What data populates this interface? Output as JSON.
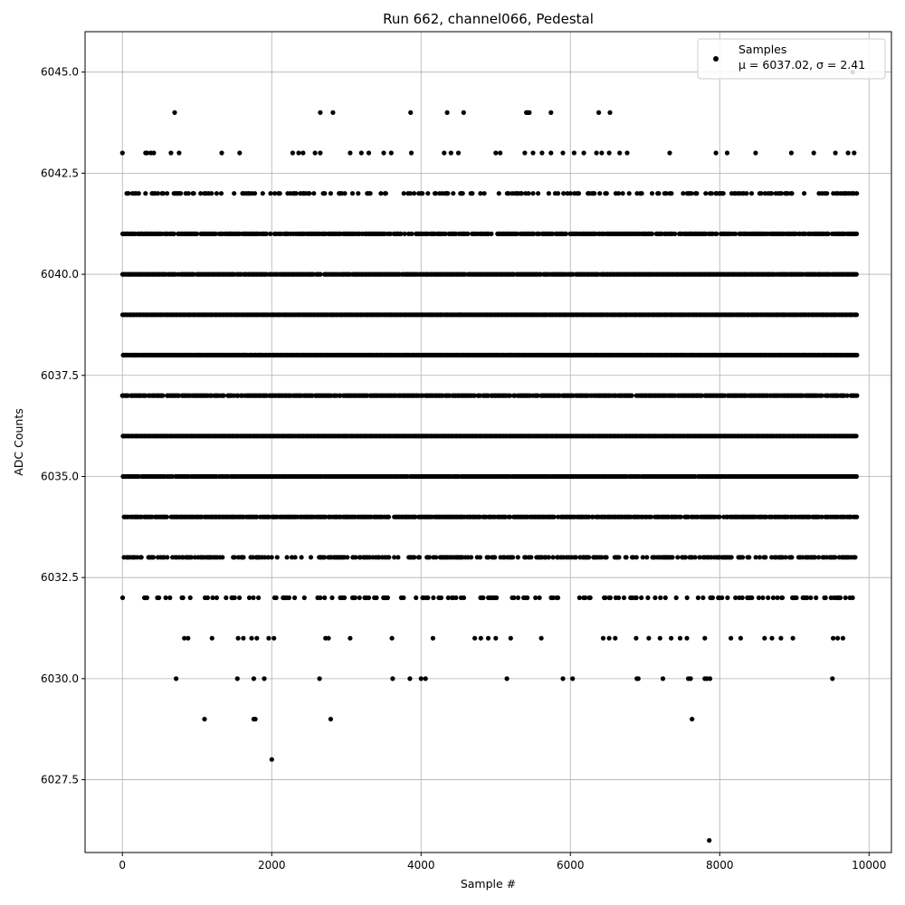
{
  "chart_data": {
    "type": "scatter",
    "title": "Run 662, channel066, Pedestal",
    "xlabel": "Sample #",
    "ylabel": "ADC Counts",
    "xlim": [
      -500,
      10300
    ],
    "ylim": [
      6025.7,
      6046.0
    ],
    "xticks": [
      0,
      2000,
      4000,
      6000,
      8000,
      10000
    ],
    "xtick_labels": [
      "0",
      "2000",
      "4000",
      "6000",
      "8000",
      "10000"
    ],
    "yticks": [
      6027.5,
      6030.0,
      6032.5,
      6035.0,
      6037.5,
      6040.0,
      6042.5,
      6045.0
    ],
    "ytick_labels": [
      "6027.5",
      "6030.0",
      "6032.5",
      "6035.0",
      "6037.5",
      "6040.0",
      "6042.5",
      "6045.0"
    ],
    "grid": true,
    "legend_position": "top-right",
    "series": [
      {
        "name": "Samples",
        "stats_label": "μ = 6037.02, σ = 2.41",
        "color": "#000000",
        "x_range": [
          0,
          9830
        ],
        "sample_count": 9831,
        "level_fill": {
          "6026": 0.0,
          "6028": 0.0,
          "6029": 0.0,
          "6030": 0.003,
          "6031": 0.05,
          "6032": 0.28,
          "6033": 0.55,
          "6034": 0.85,
          "6035": 0.97,
          "6036": 1.0,
          "6037": 0.9,
          "6038": 1.0,
          "6039": 1.0,
          "6040": 0.97,
          "6041": 0.8,
          "6042": 0.33,
          "6043": 0.12,
          "6044": 0.0,
          "6045": 0.0
        },
        "points": [
          [
            7860,
            6026
          ],
          [
            2000,
            6028
          ],
          [
            1100,
            6029
          ],
          [
            1760,
            6029
          ],
          [
            1780,
            6029
          ],
          [
            2790,
            6029
          ],
          [
            7630,
            6029
          ],
          [
            720,
            6030
          ],
          [
            1540,
            6030
          ],
          [
            1760,
            6030
          ],
          [
            1900,
            6030
          ],
          [
            2640,
            6030
          ],
          [
            3620,
            6030
          ],
          [
            3850,
            6030
          ],
          [
            4000,
            6030
          ],
          [
            4060,
            6030
          ],
          [
            5150,
            6030
          ],
          [
            5900,
            6030
          ],
          [
            6030,
            6030
          ],
          [
            6890,
            6030
          ],
          [
            6910,
            6030
          ],
          [
            7240,
            6030
          ],
          [
            7580,
            6030
          ],
          [
            7610,
            6030
          ],
          [
            7800,
            6030
          ],
          [
            7830,
            6030
          ],
          [
            7870,
            6030
          ],
          [
            9510,
            6030
          ],
          [
            700,
            6044
          ],
          [
            2650,
            6044
          ],
          [
            2820,
            6044
          ],
          [
            3860,
            6044
          ],
          [
            4350,
            6044
          ],
          [
            4570,
            6044
          ],
          [
            5410,
            6044
          ],
          [
            5430,
            6044
          ],
          [
            5450,
            6044
          ],
          [
            5740,
            6044
          ],
          [
            6380,
            6044
          ],
          [
            6530,
            6044
          ],
          [
            9780,
            6045
          ]
        ],
        "fill_samples": [
          [
            6043,
            0
          ],
          [
            6043,
            310
          ],
          [
            6043,
            330
          ],
          [
            6043,
            380
          ],
          [
            6043,
            420
          ],
          [
            6043,
            650
          ],
          [
            6043,
            760
          ],
          [
            6043,
            1330
          ],
          [
            6043,
            1570
          ],
          [
            6043,
            2280
          ],
          [
            6043,
            2360
          ],
          [
            6043,
            2420
          ],
          [
            6043,
            2580
          ],
          [
            6043,
            2650
          ],
          [
            6043,
            3050
          ],
          [
            6043,
            3200
          ],
          [
            6043,
            3300
          ],
          [
            6043,
            3500
          ],
          [
            6043,
            3600
          ],
          [
            6043,
            3870
          ],
          [
            6043,
            4310
          ],
          [
            6043,
            4400
          ],
          [
            6043,
            4500
          ],
          [
            6043,
            5000
          ],
          [
            6043,
            5060
          ],
          [
            6043,
            5390
          ],
          [
            6043,
            5500
          ],
          [
            6043,
            5620
          ],
          [
            6043,
            5740
          ],
          [
            6043,
            5900
          ],
          [
            6043,
            6050
          ],
          [
            6043,
            6180
          ],
          [
            6043,
            6350
          ],
          [
            6043,
            6420
          ],
          [
            6043,
            6520
          ],
          [
            6043,
            6660
          ],
          [
            6043,
            6760
          ],
          [
            6043,
            7330
          ],
          [
            6043,
            7950
          ],
          [
            6043,
            8100
          ],
          [
            6043,
            8480
          ],
          [
            6043,
            8960
          ],
          [
            6043,
            9260
          ],
          [
            6043,
            9550
          ],
          [
            6043,
            9720
          ],
          [
            6043,
            9800
          ],
          [
            6031,
            830
          ],
          [
            6031,
            880
          ],
          [
            6031,
            1200
          ],
          [
            6031,
            1550
          ],
          [
            6031,
            1620
          ],
          [
            6031,
            1730
          ],
          [
            6031,
            1800
          ],
          [
            6031,
            1960
          ],
          [
            6031,
            2030
          ],
          [
            6031,
            2720
          ],
          [
            6031,
            2760
          ],
          [
            6031,
            3050
          ],
          [
            6031,
            3610
          ],
          [
            6031,
            4160
          ],
          [
            6031,
            4720
          ],
          [
            6031,
            4800
          ],
          [
            6031,
            4900
          ],
          [
            6031,
            5000
          ],
          [
            6031,
            5200
          ],
          [
            6031,
            5610
          ],
          [
            6031,
            6440
          ],
          [
            6031,
            6520
          ],
          [
            6031,
            6600
          ],
          [
            6031,
            6880
          ],
          [
            6031,
            7050
          ],
          [
            6031,
            7200
          ],
          [
            6031,
            7350
          ],
          [
            6031,
            7470
          ],
          [
            6031,
            7560
          ],
          [
            6031,
            7800
          ],
          [
            6031,
            8150
          ],
          [
            6031,
            8280
          ],
          [
            6031,
            8600
          ],
          [
            6031,
            8700
          ],
          [
            6031,
            8820
          ],
          [
            6031,
            8980
          ],
          [
            6031,
            9520
          ],
          [
            6031,
            9580
          ],
          [
            6031,
            9650
          ]
        ]
      }
    ]
  }
}
